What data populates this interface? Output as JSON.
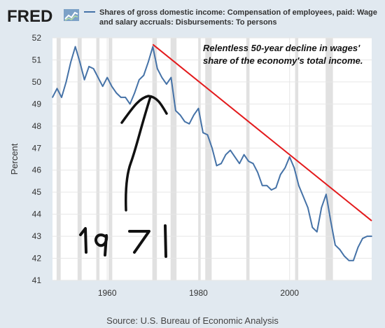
{
  "logo": {
    "text": "FRED"
  },
  "legend": {
    "line1": "Shares of gross domestic income: Compensation of employees, paid: Wage",
    "line2": "and salary accruals: Disbursements: To persons"
  },
  "annotation": {
    "line1": "Relentless 50-year decline in wages'",
    "line2": "share of the economy's total income.",
    "handwritten": "1971"
  },
  "source": "Source: U.S. Bureau of Economic Analysis",
  "colors": {
    "background": "#e1e9f0",
    "plot_bg": "#ffffff",
    "series": "#4572a7",
    "recession": "#e1e1e1",
    "trend": "#e31a1c",
    "ink": "#111111"
  },
  "chart_data": {
    "type": "line",
    "title": "",
    "xlabel": "",
    "ylabel": "Percent",
    "xlim": [
      1948,
      2018
    ],
    "ylim": [
      41,
      52
    ],
    "x_ticks": [
      1960,
      1980,
      2000
    ],
    "y_ticks": [
      41,
      42,
      43,
      44,
      45,
      46,
      47,
      48,
      49,
      50,
      51,
      52
    ],
    "grid": true,
    "series": [
      {
        "name": "Shares of gross domestic income: Compensation of employees, paid: Wage and salary accruals: Disbursements: To persons",
        "x": [
          1948,
          1949,
          1950,
          1951,
          1952,
          1953,
          1954,
          1955,
          1956,
          1957,
          1958,
          1959,
          1960,
          1961,
          1962,
          1963,
          1964,
          1965,
          1966,
          1967,
          1968,
          1969,
          1970,
          1971,
          1972,
          1973,
          1974,
          1975,
          1976,
          1977,
          1978,
          1979,
          1980,
          1981,
          1982,
          1983,
          1984,
          1985,
          1986,
          1987,
          1988,
          1989,
          1990,
          1991,
          1992,
          1993,
          1994,
          1995,
          1996,
          1997,
          1998,
          1999,
          2000,
          2001,
          2002,
          2003,
          2004,
          2005,
          2006,
          2007,
          2008,
          2009,
          2010,
          2011,
          2012,
          2013,
          2014,
          2015,
          2016,
          2017,
          2018
        ],
        "values": [
          49.3,
          49.7,
          49.3,
          50.0,
          50.9,
          51.6,
          50.9,
          50.1,
          50.7,
          50.6,
          50.2,
          49.8,
          50.2,
          49.8,
          49.5,
          49.3,
          49.3,
          49.0,
          49.5,
          50.1,
          50.3,
          50.9,
          51.6,
          50.6,
          50.2,
          49.9,
          50.2,
          48.7,
          48.5,
          48.2,
          48.1,
          48.5,
          48.8,
          47.7,
          47.6,
          47.0,
          46.2,
          46.3,
          46.7,
          46.9,
          46.6,
          46.3,
          46.7,
          46.4,
          46.3,
          45.9,
          45.3,
          45.3,
          45.1,
          45.2,
          45.8,
          46.1,
          46.6,
          46.1,
          45.3,
          44.8,
          44.3,
          43.4,
          43.2,
          44.3,
          44.9,
          43.7,
          42.6,
          42.4,
          42.1,
          41.9,
          41.9,
          42.5,
          42.9,
          43.0,
          43.0
        ]
      }
    ],
    "trend_line": {
      "x": [
        1970,
        2018
      ],
      "values": [
        51.7,
        43.7
      ]
    },
    "recessions": [
      [
        1948.9,
        1949.8
      ],
      [
        1953.5,
        1954.4
      ],
      [
        1957.6,
        1958.3
      ],
      [
        1960.3,
        1961.1
      ],
      [
        1969.9,
        1970.9
      ],
      [
        1973.9,
        1975.2
      ],
      [
        1980.0,
        1980.5
      ],
      [
        1981.5,
        1982.9
      ],
      [
        1990.5,
        1991.2
      ],
      [
        2001.2,
        2001.9
      ],
      [
        2007.9,
        2009.5
      ]
    ]
  }
}
